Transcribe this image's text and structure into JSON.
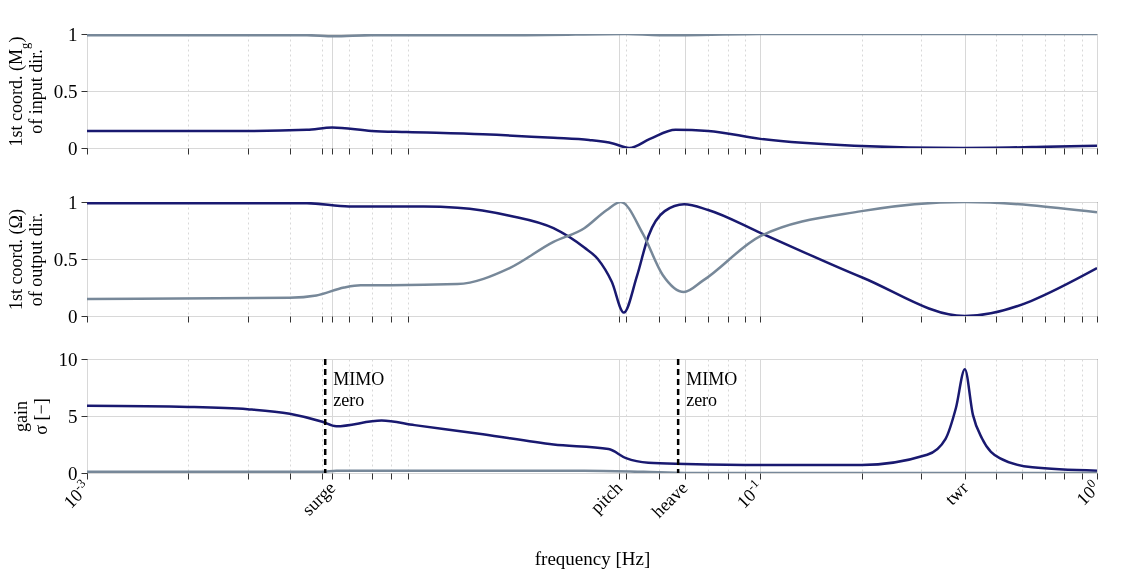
{
  "chart_data": [
    {
      "type": "line",
      "ylabel": "1st coord. (M$_{g}$)\nof input dir.",
      "log": "x",
      "grid": true,
      "tick_labels": "y",
      "xlim": [
        0.001,
        1
      ],
      "ylim": [
        0,
        1
      ],
      "yticks": [
        0,
        0.5,
        1
      ],
      "xticks": [
        {
          "value": 0.001,
          "label": null
        },
        {
          "value": 0.002,
          "label": null
        },
        {
          "value": 0.003,
          "label": null
        },
        {
          "value": 0.004,
          "label": null
        },
        {
          "value": 0.005,
          "label": null
        },
        {
          "value": 0.00536,
          "label": null
        },
        {
          "value": 0.006,
          "label": null
        },
        {
          "value": 0.007,
          "label": null
        },
        {
          "value": 0.008,
          "label": null
        },
        {
          "value": 0.009,
          "label": null
        },
        {
          "value": 0.0381,
          "label": null
        },
        {
          "value": 0.04,
          "label": null
        },
        {
          "value": 0.05,
          "label": null
        },
        {
          "value": 0.0596,
          "label": null
        },
        {
          "value": 0.07,
          "label": null
        },
        {
          "value": 0.08,
          "label": null
        },
        {
          "value": 0.09,
          "label": null
        },
        {
          "value": 0.1,
          "label": null
        },
        {
          "value": 0.2,
          "label": null
        },
        {
          "value": 0.3,
          "label": null
        },
        {
          "value": 0.406,
          "label": null
        },
        {
          "value": 0.5,
          "label": null
        },
        {
          "value": 0.6,
          "label": null
        },
        {
          "value": 0.7,
          "label": null
        },
        {
          "value": 0.8,
          "label": null
        },
        {
          "value": 0.9,
          "label": null
        },
        {
          "value": 1,
          "label": null
        }
      ],
      "series": [
        {
          "color": "#191970",
          "x": [
            0.001,
            0.003,
            0.0045,
            0.00535,
            0.007,
            0.0089,
            0.015,
            0.0243,
            0.031,
            0.0365,
            0.0408,
            0.047,
            0.056,
            0.07,
            0.1,
            0.19,
            0.4,
            0.7,
            1
          ],
          "values": [
            0.15,
            0.15,
            0.16,
            0.18,
            0.15,
            0.14,
            0.12,
            0.09,
            0.07,
            0.04,
            0.0,
            0.08,
            0.16,
            0.15,
            0.08,
            0.02,
            0.0,
            0.01,
            0.02
          ]
        },
        {
          "color": "#778899",
          "x": [
            0.001,
            0.0045,
            0.0054,
            0.007,
            0.02,
            0.04,
            0.05,
            0.06,
            0.1,
            1
          ],
          "values": [
            0.99,
            0.99,
            0.98,
            0.99,
            0.99,
            1.0,
            0.99,
            0.99,
            1.0,
            1.0
          ]
        }
      ]
    },
    {
      "type": "line",
      "ylabel": "1st coord. (Ω)\nof output dir.",
      "log": "x",
      "grid": true,
      "tick_labels": "y",
      "xlim": [
        0.001,
        1
      ],
      "ylim": [
        0,
        1
      ],
      "yticks": [
        0,
        0.5,
        1
      ],
      "xticks": [
        {
          "value": 0.001,
          "label": null
        },
        {
          "value": 0.002,
          "label": null
        },
        {
          "value": 0.003,
          "label": null
        },
        {
          "value": 0.004,
          "label": null
        },
        {
          "value": 0.005,
          "label": null
        },
        {
          "value": 0.00536,
          "label": null
        },
        {
          "value": 0.006,
          "label": null
        },
        {
          "value": 0.007,
          "label": null
        },
        {
          "value": 0.008,
          "label": null
        },
        {
          "value": 0.009,
          "label": null
        },
        {
          "value": 0.0381,
          "label": null
        },
        {
          "value": 0.04,
          "label": null
        },
        {
          "value": 0.05,
          "label": null
        },
        {
          "value": 0.0596,
          "label": null
        },
        {
          "value": 0.07,
          "label": null
        },
        {
          "value": 0.08,
          "label": null
        },
        {
          "value": 0.09,
          "label": null
        },
        {
          "value": 0.1,
          "label": null
        },
        {
          "value": 0.2,
          "label": null
        },
        {
          "value": 0.3,
          "label": null
        },
        {
          "value": 0.406,
          "label": null
        },
        {
          "value": 0.5,
          "label": null
        },
        {
          "value": 0.6,
          "label": null
        },
        {
          "value": 0.7,
          "label": null
        },
        {
          "value": 0.8,
          "label": null
        },
        {
          "value": 0.9,
          "label": null
        },
        {
          "value": 1,
          "label": null
        }
      ],
      "series": [
        {
          "color": "#191970",
          "x": [
            0.001,
            0.0045,
            0.006,
            0.01,
            0.0126,
            0.018,
            0.0243,
            0.03,
            0.0329,
            0.0362,
            0.0393,
            0.043,
            0.0465,
            0.052,
            0.0594,
            0.07,
            0.1,
            0.2,
            0.405,
            1
          ],
          "values": [
            0.99,
            0.99,
            0.96,
            0.96,
            0.95,
            0.88,
            0.77,
            0.6,
            0.5,
            0.3,
            0.03,
            0.35,
            0.7,
            0.92,
            0.98,
            0.93,
            0.73,
            0.34,
            0.0,
            0.42
          ]
        },
        {
          "color": "#778899",
          "x": [
            0.001,
            0.004,
            0.0048,
            0.0058,
            0.0065,
            0.008,
            0.0126,
            0.018,
            0.0243,
            0.03,
            0.035,
            0.0385,
            0.0448,
            0.0513,
            0.0593,
            0.0675,
            0.1,
            0.2,
            0.405,
            1
          ],
          "values": [
            0.15,
            0.16,
            0.18,
            0.25,
            0.27,
            0.27,
            0.28,
            0.42,
            0.65,
            0.77,
            0.93,
            1.0,
            0.72,
            0.36,
            0.21,
            0.31,
            0.7,
            0.92,
            1.0,
            0.91
          ]
        }
      ]
    },
    {
      "type": "line",
      "ylabel": "gain\nσ [−]",
      "xlabel": "frequency [Hz]",
      "log": "x",
      "grid": true,
      "xlim": [
        0.001,
        1
      ],
      "ylim": [
        0,
        10
      ],
      "yticks": [
        0,
        5,
        10
      ],
      "xticks": [
        {
          "value": 0.001,
          "label": "10$^{-3}$"
        },
        {
          "value": 0.002,
          "label": null
        },
        {
          "value": 0.003,
          "label": null
        },
        {
          "value": 0.004,
          "label": null
        },
        {
          "value": 0.005,
          "label": null
        },
        {
          "value": 0.00536,
          "label": "surge"
        },
        {
          "value": 0.006,
          "label": null
        },
        {
          "value": 0.007,
          "label": null
        },
        {
          "value": 0.008,
          "label": null
        },
        {
          "value": 0.009,
          "label": null
        },
        {
          "value": 0.0381,
          "label": "pitch"
        },
        {
          "value": 0.04,
          "label": null
        },
        {
          "value": 0.05,
          "label": null
        },
        {
          "value": 0.0596,
          "label": "heave"
        },
        {
          "value": 0.07,
          "label": null
        },
        {
          "value": 0.08,
          "label": null
        },
        {
          "value": 0.09,
          "label": null
        },
        {
          "value": 0.1,
          "label": "10$^{-1}$"
        },
        {
          "value": 0.2,
          "label": null
        },
        {
          "value": 0.3,
          "label": null
        },
        {
          "value": 0.406,
          "label": "twr"
        },
        {
          "value": 0.5,
          "label": null
        },
        {
          "value": 0.6,
          "label": null
        },
        {
          "value": 0.7,
          "label": null
        },
        {
          "value": 0.8,
          "label": null
        },
        {
          "value": 0.9,
          "label": null
        },
        {
          "value": 1,
          "label": "10$^{0}$"
        }
      ],
      "series": [
        {
          "color": "#191970",
          "x": [
            0.001,
            0.002,
            0.003,
            0.004,
            0.005,
            0.0055,
            0.0075,
            0.0094,
            0.015,
            0.0243,
            0.0354,
            0.0399,
            0.0465,
            0.06,
            0.1,
            0.2,
            0.313,
            0.355,
            0.381,
            0.405,
            0.428,
            0.456,
            0.514,
            0.643,
            1
          ],
          "values": [
            5.9,
            5.8,
            5.6,
            5.2,
            4.5,
            4.1,
            4.6,
            4.2,
            3.4,
            2.5,
            2.1,
            1.3,
            0.9,
            0.8,
            0.7,
            0.7,
            1.6,
            3.0,
            5.7,
            9.1,
            5.1,
            3.0,
            1.3,
            0.5,
            0.2
          ]
        },
        {
          "color": "#778899",
          "x": [
            0.001,
            0.005,
            0.0055,
            0.03,
            0.045,
            0.06,
            1
          ],
          "values": [
            0.1,
            0.1,
            0.2,
            0.2,
            0.1,
            0.0,
            0.0
          ]
        }
      ],
      "ref_lines": [
        {
          "axis": "x",
          "value": 0.0051,
          "label": "MIMO\nzero",
          "color": "#000000",
          "line_style": "dashed"
        },
        {
          "axis": "x",
          "value": 0.057,
          "label": "MIMO\nzero",
          "color": "#000000",
          "line_style": "dashed"
        }
      ]
    }
  ]
}
